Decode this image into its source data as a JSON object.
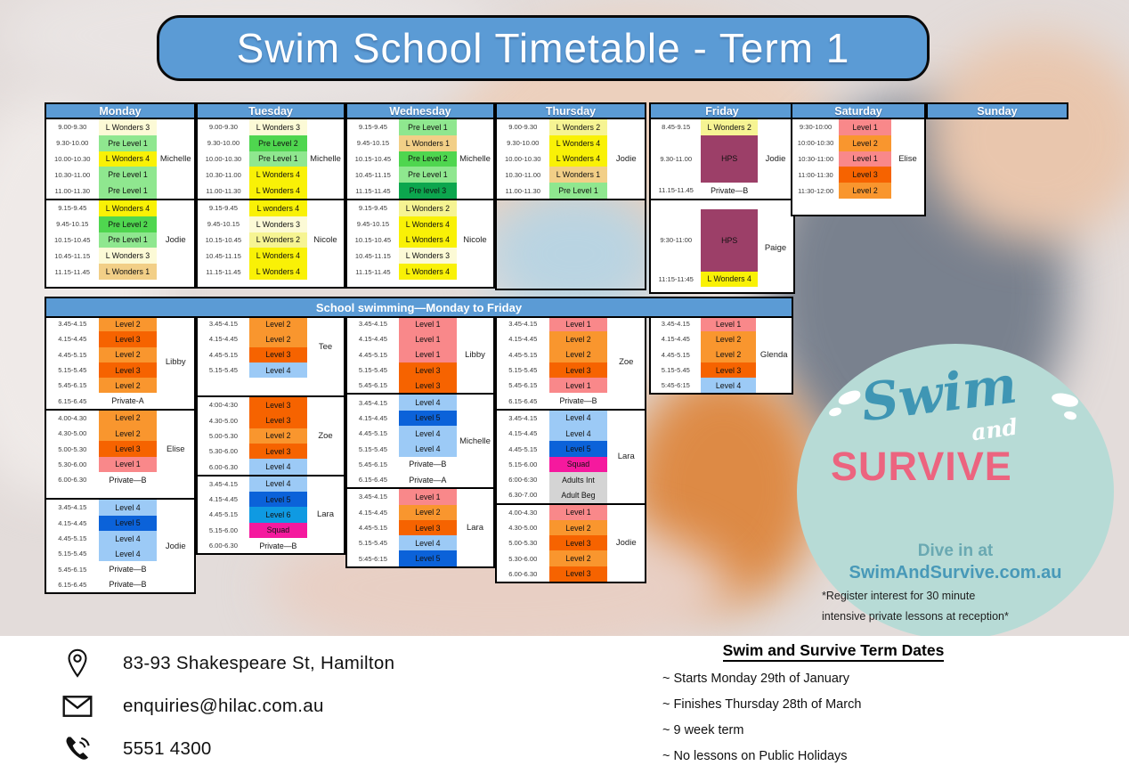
{
  "title": "Swim School Timetable - Term 1",
  "colors": {
    "lw1": "#f2cf87",
    "lw2": "#f6f493",
    "lw3": "#fcfad6",
    "lw4": "#f9f106",
    "pre1": "#8fe78f",
    "pre2": "#4fd64f",
    "pre3": "#0ca64e",
    "l1": "#f9888a",
    "l2": "#f9962e",
    "l3": "#f66300",
    "l4": "#9ccaf6",
    "l5": "#0b62d9",
    "l6": "#0f9ae2",
    "squad": "#f5199e",
    "hps": "#9c3f68",
    "grey": "#d4d4d4",
    "header_blue": "#5b9bd5"
  },
  "timetable": {
    "school_header": "School swimming—Monday to Friday",
    "morning_columns": [
      {
        "day": "Monday",
        "blocks": [
          {
            "instructor": "Michelle",
            "rows": [
              [
                "9.00-9.30",
                "L Wonders 3",
                "lw3"
              ],
              [
                "9.30-10.00",
                "Pre Level 1",
                "pre1"
              ],
              [
                "10.00-10.30",
                "L Wonders 4",
                "lw4"
              ],
              [
                "10.30-11.00",
                "Pre Level 1",
                "pre1"
              ],
              [
                "11.00-11.30",
                "Pre Level 1",
                "pre1"
              ]
            ]
          },
          {
            "instructor": "Jodie",
            "pad": 8,
            "rows": [
              [
                "9.15-9.45",
                "L Wonders 4",
                "lw4"
              ],
              [
                "9.45-10.15",
                "Pre Level 2",
                "pre2"
              ],
              [
                "10.15-10.45",
                "Pre Level 1",
                "pre1"
              ],
              [
                "10.45-11.15",
                "L Wonders 3",
                "lw3"
              ],
              [
                "11.15-11.45",
                "L Wonders 1",
                "lw1"
              ]
            ]
          }
        ]
      },
      {
        "day": "Tuesday",
        "blocks": [
          {
            "instructor": "Michelle",
            "rows": [
              [
                "9.00-9.30",
                "L Wonders 3",
                "lw3"
              ],
              [
                "9.30-10.00",
                "Pre Level 2",
                "pre2"
              ],
              [
                "10.00-10.30",
                "Pre Level 1",
                "pre1"
              ],
              [
                "10.30-11.00",
                "L Wonders 4",
                "lw4"
              ],
              [
                "11.00-11.30",
                "L Wonders 4",
                "lw4"
              ]
            ]
          },
          {
            "instructor": "Nicole",
            "pad": 8,
            "rows": [
              [
                "9.15-9.45",
                "L wonders 4",
                "lw4"
              ],
              [
                "9.45-10.15",
                "L Wonders 3",
                "lw3"
              ],
              [
                "10.15-10.45",
                "L Wonders 2",
                "lw2"
              ],
              [
                "10.45-11.15",
                "L Wonders 4",
                "lw4"
              ],
              [
                "11.15-11.45",
                "L Wonders 4",
                "lw4"
              ]
            ]
          }
        ]
      },
      {
        "day": "Wednesday",
        "blocks": [
          {
            "instructor": "Michelle",
            "rows": [
              [
                "9.15-9.45",
                "Pre Level 1",
                "pre1"
              ],
              [
                "9.45-10.15",
                "L Wonders 1",
                "lw1"
              ],
              [
                "10.15-10.45",
                "Pre Level 2",
                "pre2"
              ],
              [
                "10.45-11.15",
                "Pre Level 1",
                "pre1"
              ],
              [
                "11.15-11.45",
                "Pre level 3",
                "pre3"
              ]
            ]
          },
          {
            "instructor": "Nicole",
            "pad": 8,
            "rows": [
              [
                "9.15-9.45",
                "L Wonders 2",
                "lw2"
              ],
              [
                "9.45-10.15",
                "L Wonders 4",
                "lw4"
              ],
              [
                "10.15-10.45",
                "L Wonders 4",
                "lw4"
              ],
              [
                "10.45-11.15",
                "L Wonders 3",
                "lw3"
              ],
              [
                "11.15-11.45",
                "L Wonders 4",
                "lw4"
              ]
            ]
          }
        ]
      },
      {
        "day": "Thursday",
        "blocks": [
          {
            "instructor": "Jodie",
            "rows": [
              [
                "9.00-9.30",
                "L Wonders 2",
                "lw2"
              ],
              [
                "9.30-10.00",
                "L Wonders 4",
                "lw4"
              ],
              [
                "10.00-10.30",
                "L Wonders 4",
                "lw4"
              ],
              [
                "10.30-11.00",
                "L Wonders 1",
                "lw1"
              ],
              [
                "11.00-11.30",
                "Pre Level 1",
                "pre1"
              ]
            ]
          },
          {
            "empty": true,
            "h": 103
          }
        ]
      },
      {
        "day": "Friday",
        "blocks": [
          {
            "instructor": "Jodie",
            "rows": [
              [
                "8.45-9.15",
                "L Wonders 2",
                "lw2"
              ],
              [
                "9.30-11.00",
                "HPS",
                "hps",
                53
              ],
              [
                "11.15-11.45",
                "Private—B",
                ""
              ]
            ]
          },
          {
            "instructor": "Paige",
            "padTop": 10,
            "pad": 6,
            "rows": [
              [
                "9:30-11:00",
                "HPS",
                "hps",
                70
              ],
              [
                "11:15-11:45",
                "L Wonders 4",
                "lw4"
              ]
            ]
          }
        ]
      },
      {
        "day": "Saturday",
        "blocks": [
          {
            "instructor": "Elise",
            "pad": 18,
            "rows": [
              [
                "9:30-10:00",
                "Level 1",
                "l1"
              ],
              [
                "10:00-10:30",
                "Level 2",
                "l2"
              ],
              [
                "10:30-11:00",
                "Level 1",
                "l1"
              ],
              [
                "11:00-11:30",
                "Level 3",
                "l3"
              ],
              [
                "11:30-12:00",
                "Level 2",
                "l2"
              ]
            ]
          }
        ]
      },
      {
        "day": "Sunday",
        "blocks": []
      }
    ],
    "school_columns": [
      {
        "day": "Monday",
        "blocks": [
          {
            "instructor": "Libby",
            "rows": [
              [
                "3.45-4.15",
                "Level 2",
                "l2"
              ],
              [
                "4.15-4.45",
                "Level 3",
                "l3"
              ],
              [
                "4.45-5.15",
                "Level 2",
                "l2"
              ],
              [
                "5.15-5.45",
                "Level 3",
                "l3"
              ],
              [
                "5.45-6.15",
                "Level 2",
                "l2"
              ],
              [
                "6.15-6.45",
                "Private-A",
                ""
              ]
            ]
          },
          {
            "instructor": "Elise",
            "pad": 12,
            "rows": [
              [
                "4.00-4.30",
                "Level 2",
                "l2"
              ],
              [
                "4.30-5.00",
                "Level 2",
                "l2"
              ],
              [
                "5.00-5.30",
                "Level 3",
                "l3"
              ],
              [
                "5.30-6.00",
                "Level 1",
                "l1"
              ],
              [
                "6.00-6.30",
                "Private—B",
                ""
              ]
            ]
          },
          {
            "instructor": "Jodie",
            "rows": [
              [
                "3.45-4.15",
                "Level 4",
                "l4"
              ],
              [
                "4.15-4.45",
                "Level 5",
                "l5"
              ],
              [
                "4.45-5.15",
                "Level 4",
                "l4"
              ],
              [
                "5.15-5.45",
                "Level 4",
                "l4"
              ],
              [
                "5.45-6.15",
                "Private—B",
                ""
              ],
              [
                "6.15-6.45",
                "Private—B",
                ""
              ]
            ]
          }
        ]
      },
      {
        "day": "Tuesday",
        "blocks": [
          {
            "instructor": "Tee",
            "pad": 20,
            "rows": [
              [
                "3.45-4.15",
                "Level 2",
                "l2"
              ],
              [
                "4.15-4.45",
                "Level 2",
                "l2"
              ],
              [
                "4.45-5.15",
                "Level 3",
                "l3"
              ],
              [
                "5.15-5.45",
                "Level 4",
                "l4"
              ]
            ]
          },
          {
            "instructor": "Zoe",
            "rows": [
              [
                "4:00-4:30",
                "Level 3",
                "l3"
              ],
              [
                "4.30-5.00",
                "Level 3",
                "l3"
              ],
              [
                "5.00-5.30",
                "Level 2",
                "l2"
              ],
              [
                "5.30-6.00",
                "Level 3",
                "l3"
              ],
              [
                "6.00-6.30",
                "Level 4",
                "l4"
              ]
            ]
          },
          {
            "instructor": "Lara",
            "rows": [
              [
                "3.45-4.15",
                "Level 4",
                "l4"
              ],
              [
                "4.15-4.45",
                "Level 5",
                "l5"
              ],
              [
                "4.45-5.15",
                "Level 6",
                "l6"
              ],
              [
                "5.15-6.00",
                "Squad",
                "squad"
              ],
              [
                "6.00-6.30",
                "Private—B",
                ""
              ]
            ]
          }
        ]
      },
      {
        "day": "Wednesday",
        "blocks": [
          {
            "instructor": "Libby",
            "rows": [
              [
                "3.45-4.15",
                "Level 1",
                "l1"
              ],
              [
                "4.15-4.45",
                "Level 1",
                "l1"
              ],
              [
                "4.45-5.15",
                "Level 1",
                "l1"
              ],
              [
                "5.15-5.45",
                "Level 3",
                "l3"
              ],
              [
                "5.45-6.15",
                "Level 3",
                "l3"
              ]
            ]
          },
          {
            "instructor": "Michelle",
            "rows": [
              [
                "3.45-4.15",
                "Level 4",
                "l4"
              ],
              [
                "4.15-4.45",
                "Level 5",
                "l5"
              ],
              [
                "4.45-5.15",
                "Level 4",
                "l4"
              ],
              [
                "5.15-5.45",
                "Level 4",
                "l4"
              ],
              [
                "5.45-6.15",
                "Private—B",
                ""
              ],
              [
                "6.15-6.45",
                "Private—A",
                ""
              ]
            ]
          },
          {
            "instructor": "Lara",
            "rows": [
              [
                "3.45-4.15",
                "Level 1",
                "l1"
              ],
              [
                "4.15-4.45",
                "Level 2",
                "l2"
              ],
              [
                "4.45-5.15",
                "Level 3",
                "l3"
              ],
              [
                "5.15-5.45",
                "Level 4",
                "l4"
              ],
              [
                "5:45-6:15",
                "Level 5",
                "l5"
              ]
            ]
          }
        ]
      },
      {
        "day": "Thursday",
        "blocks": [
          {
            "instructor": "Zoe",
            "rows": [
              [
                "3.45-4.15",
                "Level 1",
                "l1"
              ],
              [
                "4.15-4.45",
                "Level 2",
                "l2"
              ],
              [
                "4.45-5.15",
                "Level 2",
                "l2"
              ],
              [
                "5.15-5.45",
                "Level 3",
                "l3"
              ],
              [
                "5.45-6.15",
                "Level 1",
                "l1"
              ],
              [
                "6.15-6.45",
                "Private—B",
                ""
              ]
            ]
          },
          {
            "instructor": "Lara",
            "rows": [
              [
                "3.45-4.15",
                "Level 4",
                "l4"
              ],
              [
                "4.15-4.45",
                "Level 4",
                "l4"
              ],
              [
                "4.45-5.15",
                "Level 5",
                "l5"
              ],
              [
                "5.15-6.00",
                "Squad",
                "squad"
              ],
              [
                "6:00-6:30",
                "Adults Int",
                "grey"
              ],
              [
                "6.30-7.00",
                "Adult Beg",
                "grey"
              ]
            ]
          },
          {
            "instructor": "Jodie",
            "rows": [
              [
                "4.00-4.30",
                "Level 1",
                "l1"
              ],
              [
                "4.30-5.00",
                "Level 2",
                "l2"
              ],
              [
                "5.00-5.30",
                "Level 3",
                "l3"
              ],
              [
                "5.30-6.00",
                "Level 2",
                "l2"
              ],
              [
                "6.00-6.30",
                "Level 3",
                "l3"
              ]
            ]
          }
        ]
      },
      {
        "day": "Friday",
        "blocks": [
          {
            "instructor": "Glenda",
            "rows": [
              [
                "3.45-4.15",
                "Level 1",
                "l1"
              ],
              [
                "4.15-4.45",
                "Level 2",
                "l2"
              ],
              [
                "4.45-5.15",
                "Level 2",
                "l2"
              ],
              [
                "5.15-5.45",
                "Level 3",
                "l3"
              ],
              [
                "5:45-6:15",
                "Level 4",
                "l4"
              ]
            ]
          }
        ]
      }
    ]
  },
  "logo": {
    "swim": "Swim",
    "and": "and",
    "survive": "SURVIVE",
    "tagline1": "Dive in at",
    "tagline2": "SwimAndSurvive.com.au",
    "note1": "*Register interest for 30 minute",
    "note2": "intensive private lessons at reception*"
  },
  "contact": {
    "address": "83-93 Shakespeare St, Hamilton",
    "email": "enquiries@hilac.com.au",
    "phone": "5551 4300"
  },
  "term_dates": {
    "heading": "Swim and Survive Term Dates",
    "items": [
      "~ Starts Monday 29th of January",
      "~ Finishes Thursday 28th of March",
      "~ 9 week term",
      "~ No lessons on Public Holidays"
    ]
  }
}
